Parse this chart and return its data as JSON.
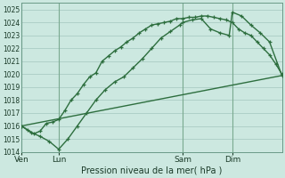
{
  "background_color": "#cce8e0",
  "grid_color": "#aaccC4",
  "line_color": "#2d6e3e",
  "xlabel": "Pression niveau de la mer( hPa )",
  "ylim": [
    1014,
    1025.5
  ],
  "yticks": [
    1014,
    1015,
    1016,
    1017,
    1018,
    1019,
    1020,
    1021,
    1022,
    1023,
    1024,
    1025
  ],
  "xtick_labels": [
    "Ven",
    "Lun",
    "Sam",
    "Dim"
  ],
  "xtick_positions": [
    0,
    12,
    52,
    68
  ],
  "vline_positions": [
    0,
    12,
    52,
    68
  ],
  "xmax": 84,
  "line1_x": [
    0,
    2,
    4,
    6,
    8,
    10,
    12,
    14,
    16,
    18,
    20,
    22,
    24,
    26,
    28,
    30,
    32,
    34,
    36,
    38,
    40,
    42,
    44,
    46,
    48,
    50,
    52,
    54,
    56,
    58,
    60,
    62,
    64,
    66,
    68,
    70,
    72,
    74,
    76,
    78,
    80,
    82,
    84
  ],
  "line1_y": [
    1016.0,
    1015.7,
    1015.4,
    1015.6,
    1016.2,
    1016.3,
    1016.5,
    1017.2,
    1018.0,
    1018.5,
    1019.2,
    1019.8,
    1020.1,
    1021.0,
    1021.4,
    1021.8,
    1022.1,
    1022.5,
    1022.8,
    1023.2,
    1023.5,
    1023.8,
    1023.9,
    1024.0,
    1024.1,
    1024.3,
    1024.3,
    1024.4,
    1024.4,
    1024.5,
    1024.5,
    1024.4,
    1024.3,
    1024.2,
    1024.0,
    1023.5,
    1023.2,
    1023.0,
    1022.5,
    1022.0,
    1021.5,
    1020.8,
    1020.0
  ],
  "line2_x": [
    0,
    3,
    6,
    9,
    12,
    15,
    18,
    21,
    24,
    27,
    30,
    33,
    36,
    39,
    42,
    45,
    48,
    51,
    52,
    55,
    58,
    61,
    64,
    67,
    68,
    71,
    74,
    77,
    80,
    84
  ],
  "line2_y": [
    1016.0,
    1015.5,
    1015.2,
    1014.8,
    1014.2,
    1015.0,
    1016.0,
    1017.0,
    1018.0,
    1018.8,
    1019.4,
    1019.8,
    1020.5,
    1021.2,
    1022.0,
    1022.8,
    1023.3,
    1023.8,
    1024.0,
    1024.2,
    1024.3,
    1023.5,
    1023.2,
    1023.0,
    1024.8,
    1024.5,
    1023.8,
    1023.2,
    1022.5,
    1019.9
  ],
  "line3_x": [
    0,
    84
  ],
  "line3_y": [
    1016.0,
    1019.9
  ]
}
